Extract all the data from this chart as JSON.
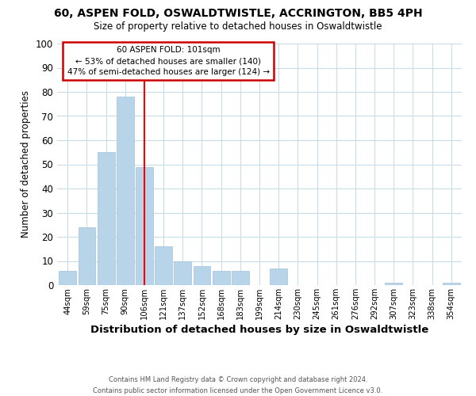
{
  "title": "60, ASPEN FOLD, OSWALDTWISTLE, ACCRINGTON, BB5 4PH",
  "subtitle": "Size of property relative to detached houses in Oswaldtwistle",
  "xlabel": "Distribution of detached houses by size in Oswaldtwistle",
  "ylabel": "Number of detached properties",
  "bin_labels": [
    "44sqm",
    "59sqm",
    "75sqm",
    "90sqm",
    "106sqm",
    "121sqm",
    "137sqm",
    "152sqm",
    "168sqm",
    "183sqm",
    "199sqm",
    "214sqm",
    "230sqm",
    "245sqm",
    "261sqm",
    "276sqm",
    "292sqm",
    "307sqm",
    "323sqm",
    "338sqm",
    "354sqm"
  ],
  "bar_values": [
    6,
    24,
    55,
    78,
    49,
    16,
    10,
    8,
    6,
    6,
    0,
    7,
    0,
    0,
    0,
    0,
    0,
    1,
    0,
    0,
    1
  ],
  "bar_color": "#b8d4e8",
  "bar_edgecolor": "#a8c8e0",
  "vline_x_index": 4,
  "vline_color": "red",
  "ylim": [
    0,
    100
  ],
  "yticks": [
    0,
    10,
    20,
    30,
    40,
    50,
    60,
    70,
    80,
    90,
    100
  ],
  "annotation_title": "60 ASPEN FOLD: 101sqm",
  "annotation_line1": "← 53% of detached houses are smaller (140)",
  "annotation_line2": "47% of semi-detached houses are larger (124) →",
  "annotation_box_color": "#ffffff",
  "annotation_box_edgecolor": "#cc0000",
  "footer_line1": "Contains HM Land Registry data © Crown copyright and database right 2024.",
  "footer_line2": "Contains public sector information licensed under the Open Government Licence v3.0.",
  "background_color": "#ffffff",
  "grid_color": "#c8dcea"
}
